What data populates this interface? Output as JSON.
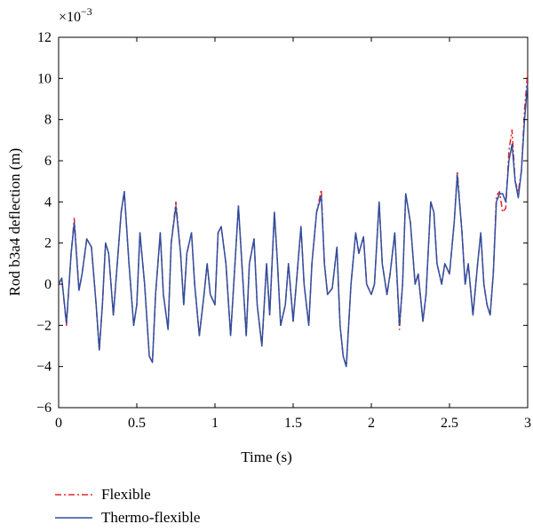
{
  "chart_data": {
    "type": "line",
    "title": "",
    "xlabel": "Time (s)",
    "ylabel": "Rod b3a4 deflection (m)",
    "y_multiplier": "×10",
    "y_multiplier_exponent": "−3",
    "xlim": [
      0,
      3
    ],
    "ylim": [
      -6,
      12
    ],
    "x_ticks": [
      0,
      0.5,
      1,
      1.5,
      2,
      2.5,
      3
    ],
    "x_tick_labels": [
      "0",
      "0.5",
      "1",
      "1.5",
      "2",
      "2.5",
      "3"
    ],
    "y_ticks": [
      -6,
      -4,
      -2,
      0,
      2,
      4,
      6,
      8,
      10,
      12
    ],
    "y_tick_labels": [
      "−6",
      "−4",
      "−2",
      "0",
      "2",
      "4",
      "6",
      "8",
      "10",
      "12"
    ],
    "grid": false,
    "legend_position": "bottom-left, outside plot",
    "series": [
      {
        "name": "Flexible",
        "color": "#e8262b",
        "style": "dash-dot",
        "points": [
          [
            0,
            0
          ],
          [
            0.02,
            0.3
          ],
          [
            0.05,
            -2
          ],
          [
            0.08,
            1.5
          ],
          [
            0.1,
            3.2
          ],
          [
            0.13,
            -0.3
          ],
          [
            0.15,
            0.5
          ],
          [
            0.18,
            2.2
          ],
          [
            0.21,
            1.8
          ],
          [
            0.24,
            -1
          ],
          [
            0.26,
            -3.2
          ],
          [
            0.28,
            -1
          ],
          [
            0.3,
            2
          ],
          [
            0.32,
            1.5
          ],
          [
            0.35,
            -1.5
          ],
          [
            0.37,
            0.5
          ],
          [
            0.4,
            3.5
          ],
          [
            0.42,
            4.5
          ],
          [
            0.45,
            1
          ],
          [
            0.48,
            -2
          ],
          [
            0.5,
            -1
          ],
          [
            0.52,
            2.5
          ],
          [
            0.55,
            0
          ],
          [
            0.58,
            -3.5
          ],
          [
            0.6,
            -3.8
          ],
          [
            0.62,
            -0.5
          ],
          [
            0.65,
            2.5
          ],
          [
            0.67,
            -0.5
          ],
          [
            0.7,
            -2.2
          ],
          [
            0.72,
            2
          ],
          [
            0.75,
            4
          ],
          [
            0.78,
            1.5
          ],
          [
            0.8,
            -1
          ],
          [
            0.82,
            1.5
          ],
          [
            0.85,
            2.5
          ],
          [
            0.87,
            0
          ],
          [
            0.9,
            -2.5
          ],
          [
            0.93,
            -0.5
          ],
          [
            0.95,
            1
          ],
          [
            0.97,
            -0.5
          ],
          [
            1,
            -1
          ],
          [
            1.02,
            2.5
          ],
          [
            1.04,
            2.8
          ],
          [
            1.07,
            1
          ],
          [
            1.1,
            -2.5
          ],
          [
            1.12,
            0
          ],
          [
            1.15,
            3.8
          ],
          [
            1.18,
            0
          ],
          [
            1.2,
            -2.5
          ],
          [
            1.22,
            1
          ],
          [
            1.25,
            2.2
          ],
          [
            1.27,
            -1
          ],
          [
            1.3,
            -3
          ],
          [
            1.33,
            1
          ],
          [
            1.35,
            -1.5
          ],
          [
            1.38,
            3.5
          ],
          [
            1.4,
            1
          ],
          [
            1.42,
            -2
          ],
          [
            1.45,
            -1
          ],
          [
            1.47,
            1
          ],
          [
            1.5,
            -1.8
          ],
          [
            1.52,
            0
          ],
          [
            1.55,
            2.8
          ],
          [
            1.57,
            0
          ],
          [
            1.6,
            -2
          ],
          [
            1.62,
            1
          ],
          [
            1.65,
            3.5
          ],
          [
            1.68,
            4.6
          ],
          [
            1.7,
            1
          ],
          [
            1.72,
            -0.5
          ],
          [
            1.75,
            -0.2
          ],
          [
            1.78,
            1.8
          ],
          [
            1.8,
            -2
          ],
          [
            1.82,
            -3.5
          ],
          [
            1.84,
            -4
          ],
          [
            1.87,
            0
          ],
          [
            1.9,
            2.5
          ],
          [
            1.92,
            1.5
          ],
          [
            1.95,
            2.3
          ],
          [
            1.97,
            0
          ],
          [
            2,
            -0.5
          ],
          [
            2.02,
            0
          ],
          [
            2.05,
            4
          ],
          [
            2.07,
            1
          ],
          [
            2.1,
            -0.5
          ],
          [
            2.12,
            0.5
          ],
          [
            2.15,
            2.5
          ],
          [
            2.18,
            -2.2
          ],
          [
            2.2,
            0
          ],
          [
            2.22,
            4.4
          ],
          [
            2.25,
            3
          ],
          [
            2.28,
            0
          ],
          [
            2.3,
            0.5
          ],
          [
            2.33,
            -1.8
          ],
          [
            2.35,
            -0.5
          ],
          [
            2.38,
            4
          ],
          [
            2.4,
            3.5
          ],
          [
            2.42,
            1
          ],
          [
            2.45,
            0
          ],
          [
            2.47,
            1
          ],
          [
            2.5,
            0.5
          ],
          [
            2.53,
            3
          ],
          [
            2.55,
            5.5
          ],
          [
            2.58,
            2.5
          ],
          [
            2.6,
            0
          ],
          [
            2.62,
            1
          ],
          [
            2.65,
            -1.5
          ],
          [
            2.68,
            1
          ],
          [
            2.7,
            2.5
          ],
          [
            2.72,
            0
          ],
          [
            2.74,
            -1
          ],
          [
            2.76,
            -1.5
          ],
          [
            2.78,
            0.5
          ],
          [
            2.8,
            4.3
          ],
          [
            2.82,
            4.5
          ],
          [
            2.84,
            3.5
          ],
          [
            2.86,
            3.7
          ],
          [
            2.88,
            6.5
          ],
          [
            2.9,
            7.5
          ],
          [
            2.92,
            5
          ],
          [
            2.94,
            4.5
          ],
          [
            2.96,
            5.5
          ],
          [
            2.98,
            8.5
          ],
          [
            3,
            10.3
          ]
        ]
      },
      {
        "name": "Thermo-flexible",
        "color": "#2e4fa0",
        "style": "solid",
        "points": [
          [
            0,
            0
          ],
          [
            0.02,
            0.3
          ],
          [
            0.05,
            -1.9
          ],
          [
            0.08,
            1.5
          ],
          [
            0.1,
            3.0
          ],
          [
            0.13,
            -0.3
          ],
          [
            0.15,
            0.5
          ],
          [
            0.18,
            2.2
          ],
          [
            0.21,
            1.8
          ],
          [
            0.24,
            -1
          ],
          [
            0.26,
            -3.2
          ],
          [
            0.28,
            -1
          ],
          [
            0.3,
            2
          ],
          [
            0.32,
            1.5
          ],
          [
            0.35,
            -1.5
          ],
          [
            0.37,
            0.5
          ],
          [
            0.4,
            3.5
          ],
          [
            0.42,
            4.5
          ],
          [
            0.45,
            1
          ],
          [
            0.48,
            -2
          ],
          [
            0.5,
            -1
          ],
          [
            0.52,
            2.5
          ],
          [
            0.55,
            0
          ],
          [
            0.58,
            -3.5
          ],
          [
            0.6,
            -3.8
          ],
          [
            0.62,
            -0.5
          ],
          [
            0.65,
            2.5
          ],
          [
            0.67,
            -0.5
          ],
          [
            0.7,
            -2.2
          ],
          [
            0.72,
            2
          ],
          [
            0.75,
            3.8
          ],
          [
            0.78,
            1.5
          ],
          [
            0.8,
            -1
          ],
          [
            0.82,
            1.5
          ],
          [
            0.85,
            2.5
          ],
          [
            0.87,
            0
          ],
          [
            0.9,
            -2.5
          ],
          [
            0.93,
            -0.5
          ],
          [
            0.95,
            1
          ],
          [
            0.97,
            -0.5
          ],
          [
            1,
            -1
          ],
          [
            1.02,
            2.5
          ],
          [
            1.04,
            2.8
          ],
          [
            1.07,
            1
          ],
          [
            1.1,
            -2.5
          ],
          [
            1.12,
            0
          ],
          [
            1.15,
            3.8
          ],
          [
            1.18,
            0
          ],
          [
            1.2,
            -2.5
          ],
          [
            1.22,
            1
          ],
          [
            1.25,
            2.2
          ],
          [
            1.27,
            -1
          ],
          [
            1.3,
            -3
          ],
          [
            1.33,
            1
          ],
          [
            1.35,
            -1.5
          ],
          [
            1.38,
            3.5
          ],
          [
            1.4,
            1
          ],
          [
            1.42,
            -2
          ],
          [
            1.45,
            -1
          ],
          [
            1.47,
            1
          ],
          [
            1.5,
            -1.8
          ],
          [
            1.52,
            0
          ],
          [
            1.55,
            2.8
          ],
          [
            1.57,
            0
          ],
          [
            1.6,
            -2
          ],
          [
            1.62,
            1
          ],
          [
            1.65,
            3.5
          ],
          [
            1.68,
            4.3
          ],
          [
            1.7,
            1
          ],
          [
            1.72,
            -0.5
          ],
          [
            1.75,
            -0.2
          ],
          [
            1.78,
            1.8
          ],
          [
            1.8,
            -2
          ],
          [
            1.82,
            -3.5
          ],
          [
            1.84,
            -4
          ],
          [
            1.87,
            0
          ],
          [
            1.9,
            2.5
          ],
          [
            1.92,
            1.5
          ],
          [
            1.95,
            2.3
          ],
          [
            1.97,
            0
          ],
          [
            2,
            -0.5
          ],
          [
            2.02,
            0
          ],
          [
            2.05,
            4
          ],
          [
            2.07,
            1
          ],
          [
            2.1,
            -0.5
          ],
          [
            2.12,
            0.5
          ],
          [
            2.15,
            2.5
          ],
          [
            2.18,
            -2
          ],
          [
            2.2,
            0
          ],
          [
            2.22,
            4.4
          ],
          [
            2.25,
            3
          ],
          [
            2.28,
            0
          ],
          [
            2.3,
            0.5
          ],
          [
            2.33,
            -1.8
          ],
          [
            2.35,
            -0.5
          ],
          [
            2.38,
            4
          ],
          [
            2.4,
            3.5
          ],
          [
            2.42,
            1
          ],
          [
            2.45,
            0
          ],
          [
            2.47,
            1
          ],
          [
            2.5,
            0.5
          ],
          [
            2.53,
            3
          ],
          [
            2.55,
            5.3
          ],
          [
            2.58,
            2.5
          ],
          [
            2.6,
            0
          ],
          [
            2.62,
            1
          ],
          [
            2.65,
            -1.5
          ],
          [
            2.68,
            1
          ],
          [
            2.7,
            2.5
          ],
          [
            2.72,
            0
          ],
          [
            2.74,
            -1
          ],
          [
            2.76,
            -1.5
          ],
          [
            2.78,
            0.5
          ],
          [
            2.8,
            4
          ],
          [
            2.82,
            4.4
          ],
          [
            2.84,
            4.4
          ],
          [
            2.86,
            4
          ],
          [
            2.88,
            6
          ],
          [
            2.9,
            6.8
          ],
          [
            2.92,
            5
          ],
          [
            2.94,
            4.2
          ],
          [
            2.96,
            5.5
          ],
          [
            2.98,
            8
          ],
          [
            3,
            9.8
          ]
        ]
      }
    ]
  }
}
